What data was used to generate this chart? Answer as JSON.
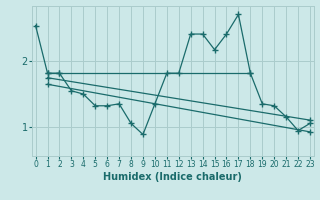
{
  "xlabel": "Humidex (Indice chaleur)",
  "ylabel": "",
  "bg_color": "#cce8e8",
  "grid_color": "#aacccc",
  "line_color": "#1a6b6b",
  "x_ticks": [
    0,
    1,
    2,
    3,
    4,
    5,
    6,
    7,
    8,
    9,
    10,
    11,
    12,
    13,
    14,
    15,
    16,
    17,
    18,
    19,
    20,
    21,
    22,
    23
  ],
  "y_ticks": [
    1,
    2
  ],
  "ylim": [
    0.55,
    2.85
  ],
  "xlim": [
    -0.3,
    23.3
  ],
  "series1_x": [
    0,
    1,
    2,
    3,
    4,
    5,
    6,
    7,
    8,
    9,
    10,
    11,
    12,
    13,
    14,
    15,
    16,
    17,
    18,
    19,
    20,
    21,
    22,
    23
  ],
  "series1_y": [
    2.55,
    1.82,
    1.82,
    1.55,
    1.5,
    1.32,
    1.32,
    1.35,
    1.05,
    0.88,
    1.35,
    1.82,
    1.82,
    2.42,
    2.42,
    2.18,
    2.42,
    2.72,
    1.82,
    1.35,
    1.32,
    1.15,
    0.94,
    1.05
  ],
  "series2_x": [
    1,
    2,
    18
  ],
  "series2_y": [
    1.82,
    1.82,
    1.82
  ],
  "series3_x": [
    1,
    23
  ],
  "series3_y": [
    1.75,
    1.1
  ],
  "series4_x": [
    1,
    23
  ],
  "series4_y": [
    1.65,
    0.92
  ]
}
